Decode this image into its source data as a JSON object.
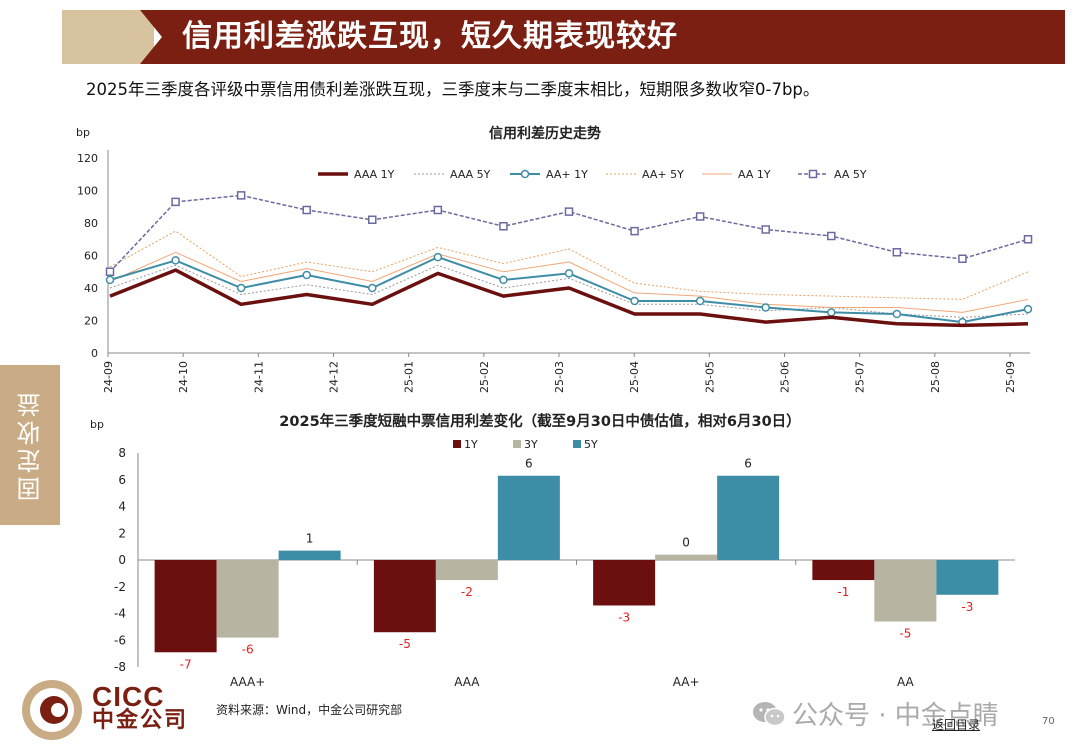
{
  "header": {
    "title": "信用利差涨跌互现，短久期表现较好",
    "subtitle": "2025年三季度各评级中票信用债利差涨跌互现，三季度末与二季度末相比，短期限多数收窄0-7bp。"
  },
  "side_tab": {
    "label": "固定收益"
  },
  "footer": {
    "logo_latin": "CICC",
    "logo_cn": "中金公司",
    "source": "资料来源：Wind，中金公司研究部",
    "watermark": "公众号 · 中金点睛",
    "return_link": "返回目录",
    "page_number": "70"
  },
  "chart_data": [
    {
      "type": "line",
      "title": "信用利差历史走势",
      "ylabel": "bp",
      "ylim": [
        0,
        120
      ],
      "yticks": [
        "0",
        "20",
        "40",
        "60",
        "80",
        "100",
        "120"
      ],
      "xticks": [
        "24-09",
        "24-10",
        "24-11",
        "24-12",
        "25-01",
        "25-02",
        "25-03",
        "25-04",
        "25-05",
        "25-06",
        "25-07",
        "25-08",
        "25-09"
      ],
      "x": [
        "24-09",
        "24-10",
        "24-10b",
        "24-11",
        "24-12",
        "25-01",
        "25-02",
        "25-03",
        "25-04",
        "25-05",
        "25-06",
        "25-07",
        "25-08",
        "25-09",
        "25-09b"
      ],
      "legend_position": "top",
      "series": [
        {
          "name": "AAA 1Y",
          "color": "#6b0f0f",
          "style": "solid-thick",
          "values": [
            35,
            51,
            30,
            36,
            30,
            49,
            35,
            40,
            24,
            24,
            19,
            22,
            18,
            17,
            18
          ]
        },
        {
          "name": "AAA 5Y",
          "color": "#9a9a9a",
          "style": "dotted",
          "values": [
            40,
            54,
            36,
            42,
            36,
            54,
            40,
            46,
            30,
            30,
            26,
            28,
            24,
            22,
            24
          ]
        },
        {
          "name": "AA+ 1Y",
          "color": "#3e8da6",
          "style": "solid-marker",
          "values": [
            45,
            57,
            40,
            48,
            40,
            59,
            45,
            49,
            32,
            32,
            28,
            25,
            24,
            19,
            27
          ]
        },
        {
          "name": "AA+ 5Y",
          "color": "#e8a060",
          "style": "dotted",
          "values": [
            53,
            75,
            47,
            56,
            50,
            65,
            55,
            64,
            43,
            38,
            36,
            35,
            34,
            33,
            50
          ]
        },
        {
          "name": "AA 1Y",
          "color": "#f0a878",
          "style": "solid-thin",
          "values": [
            44,
            62,
            44,
            52,
            44,
            61,
            50,
            56,
            37,
            35,
            30,
            28,
            28,
            25,
            33
          ]
        },
        {
          "name": "AA 5Y",
          "color": "#6a6aa0",
          "style": "dashed-marker",
          "values": [
            50,
            93,
            97,
            88,
            82,
            88,
            78,
            87,
            75,
            84,
            76,
            72,
            62,
            58,
            70
          ]
        }
      ]
    },
    {
      "type": "bar",
      "title": "2025年三季度短融中票信用利差变化（截至9月30日中债估值，相对6月30日）",
      "ylabel": "bp",
      "ylim": [
        -8,
        8
      ],
      "yticks": [
        "8",
        "6",
        "4",
        "2",
        "0",
        "-2",
        "-4",
        "-6",
        "-8"
      ],
      "categories": [
        "AAA+",
        "AAA",
        "AA+",
        "AA"
      ],
      "legend_position": "top",
      "series": [
        {
          "name": "1Y",
          "color": "#6b0f0f",
          "values": [
            -6.9,
            -5.4,
            -3.4,
            -1.5
          ],
          "labels": [
            "-7",
            "-5",
            "-3",
            "-1"
          ]
        },
        {
          "name": "3Y",
          "color": "#b8b4a2",
          "values": [
            -5.8,
            -1.5,
            0.4,
            -4.6
          ],
          "labels": [
            "-6",
            "-2",
            "0",
            "-5"
          ]
        },
        {
          "name": "5Y",
          "color": "#3e8da6",
          "values": [
            0.7,
            6.3,
            6.3,
            -2.6
          ],
          "labels": [
            "1",
            "6",
            "6",
            "-3"
          ]
        }
      ]
    }
  ]
}
